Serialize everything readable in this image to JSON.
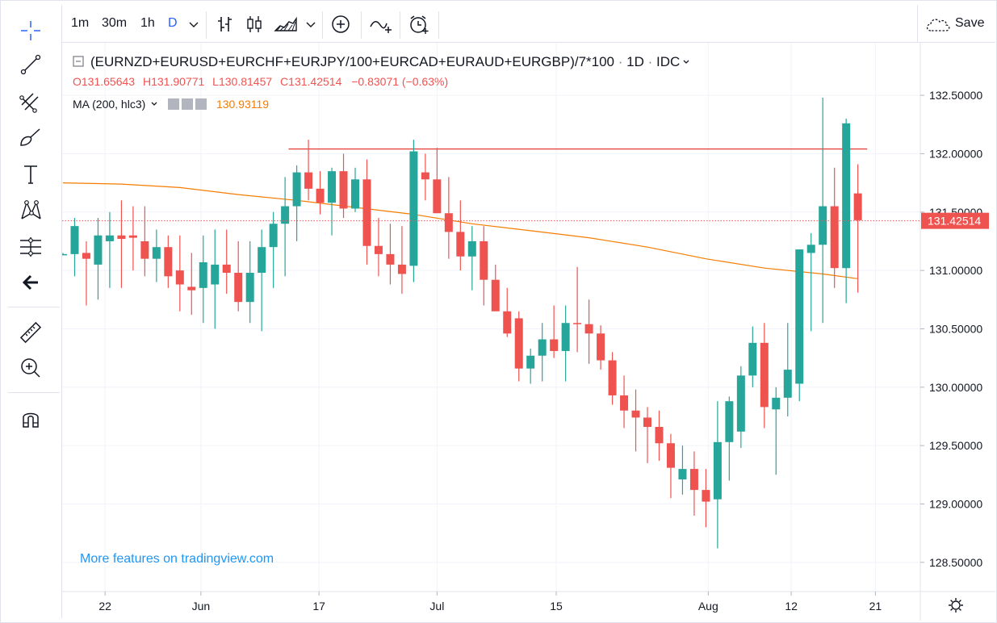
{
  "toolbar": {
    "intervals": [
      {
        "label": "1m",
        "active": false
      },
      {
        "label": "30m",
        "active": false
      },
      {
        "label": "1h",
        "active": false
      },
      {
        "label": "D",
        "active": true
      }
    ],
    "save_label": "Save",
    "icons": [
      "chevron-down-icon",
      "bar-chart-icon",
      "candlestick-icon",
      "area-chart-icon",
      "chevron-down-icon",
      "add-indicator-icon",
      "compare-icon",
      "alert-clock-icon",
      "cloud-icon"
    ]
  },
  "left_tools": [
    "crosshair-icon",
    "trend-line-icon",
    "pitchfork-icon",
    "brush-icon",
    "text-icon",
    "pattern-icon",
    "measure-fib-icon",
    "back-arrow-icon",
    "ruler-icon",
    "zoom-in-icon",
    "magnet-icon"
  ],
  "legend": {
    "symbol": "(EURNZD+EURUSD+EURCHF+EURJPY/100+EURCAD+EURAUD+EURGBP)/7*100",
    "interval": "1D",
    "source": "IDC",
    "o_key": "O",
    "o_val": "131.65643",
    "h_key": "H",
    "h_val": "131.90771",
    "l_key": "L",
    "l_val": "130.81457",
    "c_key": "C",
    "c_val": "131.42514",
    "change": "−0.83071 (−0.63%)",
    "ma_label": "MA (200, hlc3)",
    "ma_value": "130.93119"
  },
  "promo": "More features on tradingview.com",
  "chart_data": {
    "type": "candlestick",
    "ylim": [
      128.25,
      132.95
    ],
    "y_ticks": [
      "128.50000",
      "129.00000",
      "129.50000",
      "130.00000",
      "130.50000",
      "131.00000",
      "131.50000",
      "132.00000",
      "132.50000"
    ],
    "x_ticks": [
      "22",
      "Jun",
      "17",
      "Jul",
      "15",
      "Aug",
      "12",
      "21"
    ],
    "last_price_label": "131.42514",
    "last_price": 131.425,
    "horizontal_line": 132.04,
    "colors": {
      "up": "#26a69a",
      "down": "#ef5350",
      "ma": "#f57c00",
      "hline": "#e53935"
    },
    "candles": [
      [
        131.14,
        131.15,
        131.13,
        131.14
      ],
      [
        131.14,
        131.45,
        130.95,
        131.38
      ],
      [
        131.15,
        131.25,
        130.7,
        131.1
      ],
      [
        131.05,
        131.45,
        130.75,
        131.3
      ],
      [
        131.25,
        131.5,
        130.85,
        131.3
      ],
      [
        131.3,
        131.6,
        130.85,
        131.27
      ],
      [
        131.3,
        131.55,
        131.0,
        131.28
      ],
      [
        131.25,
        131.55,
        130.95,
        131.1
      ],
      [
        131.1,
        131.35,
        130.9,
        131.2
      ],
      [
        131.2,
        131.3,
        130.85,
        130.95
      ],
      [
        131.0,
        131.3,
        130.65,
        130.88
      ],
      [
        130.86,
        131.15,
        130.62,
        130.83
      ],
      [
        130.85,
        131.3,
        130.55,
        131.07
      ],
      [
        130.88,
        131.35,
        130.5,
        131.05
      ],
      [
        131.05,
        131.35,
        130.8,
        130.98
      ],
      [
        130.98,
        131.25,
        130.65,
        130.73
      ],
      [
        130.73,
        131.25,
        130.55,
        130.98
      ],
      [
        130.98,
        131.35,
        130.48,
        131.2
      ],
      [
        131.2,
        131.5,
        130.85,
        131.4
      ],
      [
        131.4,
        131.8,
        130.95,
        131.55
      ],
      [
        131.55,
        131.9,
        131.25,
        131.84
      ],
      [
        131.84,
        132.12,
        131.6,
        131.7
      ],
      [
        131.7,
        131.85,
        131.48,
        131.58
      ],
      [
        131.58,
        131.88,
        131.3,
        131.85
      ],
      [
        131.85,
        132.0,
        131.45,
        131.53
      ],
      [
        131.53,
        131.88,
        131.5,
        131.78
      ],
      [
        131.78,
        131.95,
        131.05,
        131.21
      ],
      [
        131.21,
        131.45,
        130.95,
        131.14
      ],
      [
        131.14,
        131.4,
        130.88,
        131.05
      ],
      [
        131.05,
        131.38,
        130.8,
        130.97
      ],
      [
        131.04,
        132.12,
        130.9,
        132.02
      ],
      [
        131.84,
        132.0,
        131.6,
        131.78
      ],
      [
        131.78,
        132.05,
        131.5,
        131.49
      ],
      [
        131.49,
        131.8,
        131.1,
        131.33
      ],
      [
        131.33,
        131.6,
        131.0,
        131.12
      ],
      [
        131.12,
        131.38,
        130.83,
        131.25
      ],
      [
        131.25,
        131.38,
        130.7,
        130.92
      ],
      [
        130.92,
        131.05,
        130.68,
        130.65
      ],
      [
        130.65,
        130.85,
        130.43,
        130.46
      ],
      [
        130.59,
        130.65,
        130.05,
        130.16
      ],
      [
        130.16,
        130.33,
        130.03,
        130.27
      ],
      [
        130.27,
        130.55,
        130.05,
        130.41
      ],
      [
        130.41,
        130.7,
        130.25,
        130.31
      ],
      [
        130.31,
        130.7,
        130.05,
        130.55
      ],
      [
        130.55,
        131.03,
        130.3,
        130.54
      ],
      [
        130.54,
        130.75,
        130.2,
        130.46
      ],
      [
        130.46,
        130.53,
        130.15,
        130.23
      ],
      [
        130.23,
        130.3,
        129.85,
        129.93
      ],
      [
        129.93,
        130.1,
        129.65,
        129.8
      ],
      [
        129.8,
        129.98,
        129.45,
        129.74
      ],
      [
        129.74,
        129.83,
        129.35,
        129.66
      ],
      [
        129.66,
        129.8,
        129.37,
        129.52
      ],
      [
        129.52,
        129.6,
        129.05,
        129.31
      ],
      [
        129.21,
        129.5,
        129.08,
        129.3
      ],
      [
        129.3,
        129.45,
        128.9,
        129.12
      ],
      [
        129.12,
        129.3,
        128.8,
        129.02
      ],
      [
        129.04,
        129.88,
        128.62,
        129.53
      ],
      [
        129.53,
        129.92,
        129.2,
        129.88
      ],
      [
        129.62,
        130.18,
        129.48,
        130.1
      ],
      [
        130.1,
        130.52,
        130.0,
        130.38
      ],
      [
        130.38,
        130.55,
        129.65,
        129.83
      ],
      [
        129.81,
        130.0,
        129.25,
        129.91
      ],
      [
        129.91,
        130.55,
        129.75,
        130.15
      ],
      [
        130.03,
        131.18,
        129.88,
        131.18
      ],
      [
        131.15,
        131.32,
        130.48,
        131.22
      ],
      [
        131.22,
        132.48,
        130.55,
        131.55
      ],
      [
        131.55,
        131.88,
        130.85,
        131.02
      ],
      [
        131.02,
        132.3,
        130.72,
        132.26
      ],
      [
        131.66,
        131.91,
        130.81,
        131.43
      ]
    ],
    "ma": [
      [
        0,
        131.75
      ],
      [
        5,
        131.74
      ],
      [
        10,
        131.71
      ],
      [
        15,
        131.65
      ],
      [
        20,
        131.6
      ],
      [
        25,
        131.54
      ],
      [
        30,
        131.48
      ],
      [
        35,
        131.4
      ],
      [
        40,
        131.34
      ],
      [
        45,
        131.28
      ],
      [
        50,
        131.2
      ],
      [
        55,
        131.1
      ],
      [
        60,
        131.02
      ],
      [
        65,
        130.97
      ],
      [
        68,
        130.93
      ]
    ]
  }
}
